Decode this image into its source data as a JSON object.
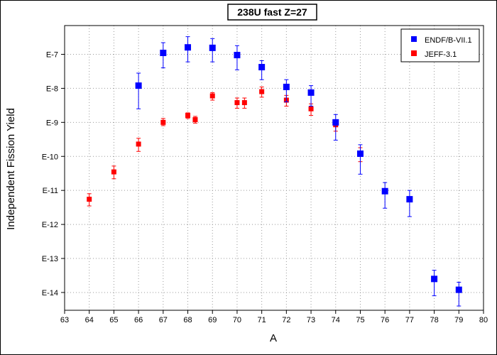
{
  "chart_data": {
    "type": "scatter",
    "title": "238U fast Z=27",
    "xlabel": "A",
    "ylabel": "Independent Fission Yield",
    "xlim": [
      63,
      80
    ],
    "ylim": [
      3e-15,
      7e-07
    ],
    "ylog": true,
    "grid": true,
    "legend_position": "top-right",
    "x_ticks": [
      "63",
      "64",
      "65",
      "66",
      "67",
      "68",
      "69",
      "70",
      "71",
      "72",
      "73",
      "74",
      "75",
      "76",
      "77",
      "78",
      "79",
      "80"
    ],
    "y_ticks": [
      {
        "label": "E-7",
        "value": 1e-07
      },
      {
        "label": "E-8",
        "value": 1e-08
      },
      {
        "label": "E-9",
        "value": 1e-09
      },
      {
        "label": "E-10",
        "value": 1e-10
      },
      {
        "label": "E-11",
        "value": 1e-11
      },
      {
        "label": "E-12",
        "value": 1e-12
      },
      {
        "label": "E-13",
        "value": 1e-13
      },
      {
        "label": "E-14",
        "value": 1e-14
      }
    ],
    "series": [
      {
        "name": "ENDF/B-VII.1",
        "color": "#0000ff",
        "marker": "square",
        "points": [
          {
            "x": 66,
            "y": 1.2e-08,
            "lo": 2.5e-09,
            "hi": 2.8e-08
          },
          {
            "x": 67,
            "y": 1.1e-07,
            "lo": 4e-08,
            "hi": 2.2e-07
          },
          {
            "x": 68,
            "y": 1.6e-07,
            "lo": 6e-08,
            "hi": 3.3e-07
          },
          {
            "x": 69,
            "y": 1.55e-07,
            "lo": 6e-08,
            "hi": 2.9e-07
          },
          {
            "x": 70,
            "y": 9.5e-08,
            "lo": 3.5e-08,
            "hi": 1.8e-07
          },
          {
            "x": 71,
            "y": 4.2e-08,
            "lo": 1.8e-08,
            "hi": 6.5e-08
          },
          {
            "x": 72,
            "y": 1.1e-08,
            "lo": 4e-09,
            "hi": 1.8e-08
          },
          {
            "x": 73,
            "y": 7.5e-09,
            "lo": 3e-09,
            "hi": 1.2e-08
          },
          {
            "x": 74,
            "y": 1e-09,
            "lo": 3e-10,
            "hi": 1.7e-09
          },
          {
            "x": 75,
            "y": 1.2e-10,
            "lo": 3e-11,
            "hi": 2.2e-10
          },
          {
            "x": 76,
            "y": 9.5e-12,
            "lo": 3e-12,
            "hi": 1.7e-11
          },
          {
            "x": 77,
            "y": 5.5e-12,
            "lo": 1.7e-12,
            "hi": 1e-11
          },
          {
            "x": 78,
            "y": 2.5e-14,
            "lo": 8e-15,
            "hi": 4.5e-14
          },
          {
            "x": 79,
            "y": 1.2e-14,
            "lo": 4e-15,
            "hi": 2e-14
          }
        ]
      },
      {
        "name": "JEFF-3.1",
        "color": "#ff0000",
        "marker": "square",
        "points": [
          {
            "x": 64,
            "y": 5.5e-12,
            "lo": 3.5e-12,
            "hi": 8e-12
          },
          {
            "x": 65,
            "y": 3.5e-11,
            "lo": 2.2e-11,
            "hi": 5.2e-11
          },
          {
            "x": 66,
            "y": 2.3e-10,
            "lo": 1.4e-10,
            "hi": 3.4e-10
          },
          {
            "x": 67,
            "y": 1e-09,
            "lo": 8e-10,
            "hi": 1.3e-09
          },
          {
            "x": 68,
            "y": 1.6e-09,
            "lo": 1.3e-09,
            "hi": 1.9e-09
          },
          {
            "x": 68.3,
            "y": 1.2e-09,
            "lo": 9.5e-10,
            "hi": 1.5e-09
          },
          {
            "x": 69,
            "y": 6e-09,
            "lo": 4.5e-09,
            "hi": 7.5e-09
          },
          {
            "x": 70,
            "y": 3.8e-09,
            "lo": 2.6e-09,
            "hi": 5.2e-09
          },
          {
            "x": 70.3,
            "y": 3.8e-09,
            "lo": 2.6e-09,
            "hi": 5.2e-09
          },
          {
            "x": 71,
            "y": 8e-09,
            "lo": 5.5e-09,
            "hi": 1.1e-08
          },
          {
            "x": 72,
            "y": 4.5e-09,
            "lo": 3e-09,
            "hi": 6.2e-09
          },
          {
            "x": 73,
            "y": 2.5e-09,
            "lo": 1.6e-09,
            "hi": 3.5e-09
          },
          {
            "x": 74,
            "y": 8.5e-10,
            "lo": 5.5e-10,
            "hi": 1.2e-09
          },
          {
            "x": 75,
            "y": 1.2e-10,
            "lo": 7e-11,
            "hi": 1.8e-10
          }
        ]
      }
    ]
  }
}
